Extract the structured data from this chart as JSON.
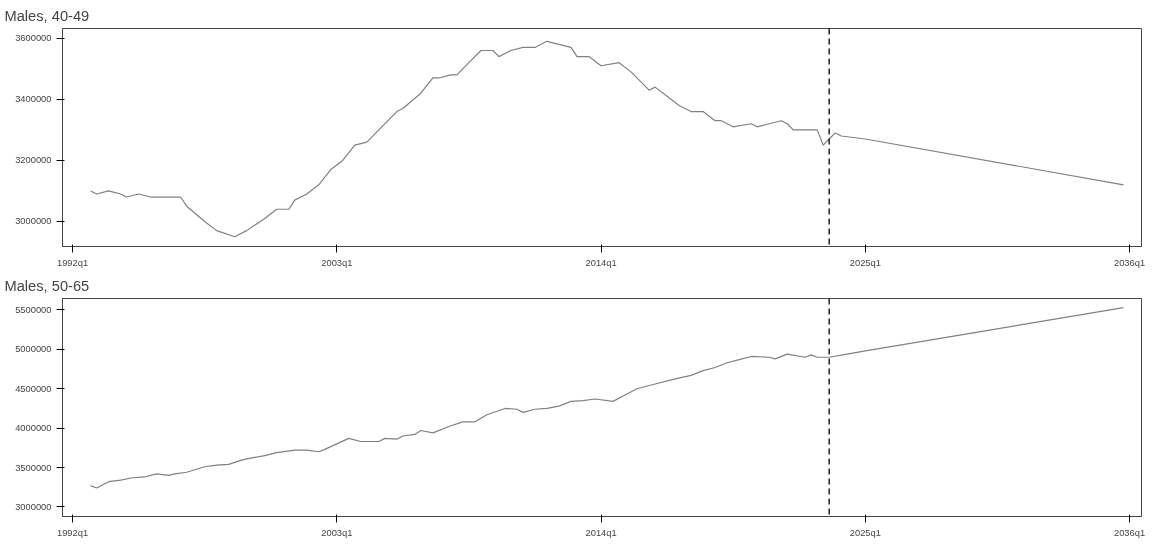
{
  "chart_data": [
    {
      "type": "line",
      "title": "Males, 40-49",
      "color": "#808080",
      "grid": false,
      "line_style": "solid",
      "x": [
        "1992-10",
        "1993-01",
        "1993-07",
        "1994-01",
        "1994-04",
        "1994-10",
        "1995-04",
        "1996-01",
        "1996-07",
        "1996-10",
        "1997-07",
        "1998-01",
        "1998-10",
        "1999-04",
        "2000-01",
        "2000-07",
        "2001-01",
        "2001-04",
        "2001-10",
        "2002-04",
        "2002-10",
        "2003-04",
        "2003-10",
        "2004-04",
        "2004-10",
        "2005-07",
        "2005-10",
        "2006-07",
        "2007-01",
        "2007-04",
        "2007-10",
        "2008-01",
        "2008-07",
        "2009-01",
        "2009-04",
        "2009-07",
        "2009-10",
        "2010-01",
        "2010-04",
        "2010-10",
        "2011-04",
        "2011-10",
        "2012-04",
        "2012-10",
        "2013-01",
        "2013-04",
        "2013-07",
        "2014-01",
        "2014-10",
        "2015-04",
        "2016-01",
        "2016-04",
        "2016-10",
        "2017-04",
        "2017-10",
        "2018-04",
        "2018-10",
        "2019-01",
        "2019-07",
        "2020-04",
        "2020-07",
        "2021-01",
        "2021-07",
        "2021-10",
        "2022-01",
        "2022-07",
        "2023-01",
        "2023-04",
        "2023-07",
        "2023-10",
        "2024-01",
        "2025-01",
        "2035-10"
      ],
      "values": [
        3100000,
        3090000,
        3100000,
        3090000,
        3080000,
        3090000,
        3080000,
        3080000,
        3080000,
        3050000,
        3000000,
        2970000,
        2950000,
        2970000,
        3010000,
        3040000,
        3040000,
        3070000,
        3090000,
        3120000,
        3170000,
        3200000,
        3250000,
        3260000,
        3300000,
        3360000,
        3370000,
        3420000,
        3470000,
        3470000,
        3480000,
        3480000,
        3520000,
        3560000,
        3560000,
        3560000,
        3540000,
        3550000,
        3560000,
        3570000,
        3570000,
        3590000,
        3580000,
        3570000,
        3540000,
        3540000,
        3540000,
        3510000,
        3520000,
        3490000,
        3430000,
        3440000,
        3410000,
        3380000,
        3360000,
        3360000,
        3330000,
        3330000,
        3310000,
        3320000,
        3310000,
        3320000,
        3330000,
        3320000,
        3300000,
        3300000,
        3300000,
        3250000,
        3270000,
        3290000,
        3280000,
        3270000,
        3120000
      ],
      "xlim": [
        "1991-08",
        "2036-07"
      ],
      "ylim": [
        2918000,
        3632000
      ],
      "xticks": [
        {
          "value": "1992-01",
          "label": "1992q1"
        },
        {
          "value": "2003-01",
          "label": "2003q1"
        },
        {
          "value": "2014-01",
          "label": "2014q1"
        },
        {
          "value": "2025-01",
          "label": "2025q1"
        },
        {
          "value": "2036-01",
          "label": "2036q1"
        }
      ],
      "yticks": [
        3000000,
        3200000,
        3400000,
        3600000
      ],
      "ref_lines": [
        {
          "axis": "x",
          "value": "2023-07",
          "color": "#000000",
          "line_style": "dashed"
        }
      ]
    },
    {
      "type": "line",
      "title": "Males, 50-65",
      "color": "#808080",
      "grid": false,
      "line_style": "solid",
      "x": [
        "1992-10",
        "1993-01",
        "1993-07",
        "1994-01",
        "1994-07",
        "1995-01",
        "1995-07",
        "1996-01",
        "1996-04",
        "1996-10",
        "1997-07",
        "1998-01",
        "1998-07",
        "1999-01",
        "1999-04",
        "2000-01",
        "2000-07",
        "2001-04",
        "2001-10",
        "2002-04",
        "2002-07",
        "2003-01",
        "2003-07",
        "2004-01",
        "2004-10",
        "2005-01",
        "2005-07",
        "2005-10",
        "2006-04",
        "2006-07",
        "2007-01",
        "2007-10",
        "2008-04",
        "2008-10",
        "2009-04",
        "2010-01",
        "2010-07",
        "2010-10",
        "2011-04",
        "2011-10",
        "2012-04",
        "2012-10",
        "2013-04",
        "2013-10",
        "2014-07",
        "2015-01",
        "2015-07",
        "2016-04",
        "2017-01",
        "2017-10",
        "2018-04",
        "2018-10",
        "2019-04",
        "2019-10",
        "2020-04",
        "2021-01",
        "2021-04",
        "2021-10",
        "2022-07",
        "2022-10",
        "2023-01",
        "2023-07",
        "2024-04",
        "2025-01",
        "2035-10"
      ],
      "values": [
        3270000,
        3240000,
        3320000,
        3340000,
        3370000,
        3380000,
        3420000,
        3400000,
        3420000,
        3440000,
        3510000,
        3530000,
        3540000,
        3590000,
        3610000,
        3650000,
        3690000,
        3720000,
        3720000,
        3700000,
        3730000,
        3800000,
        3870000,
        3830000,
        3830000,
        3870000,
        3860000,
        3900000,
        3920000,
        3970000,
        3940000,
        4030000,
        4080000,
        4080000,
        4170000,
        4250000,
        4240000,
        4200000,
        4240000,
        4250000,
        4280000,
        4340000,
        4350000,
        4370000,
        4340000,
        4420000,
        4500000,
        4560000,
        4620000,
        4670000,
        4730000,
        4770000,
        4830000,
        4870000,
        4910000,
        4900000,
        4880000,
        4940000,
        4900000,
        4930000,
        4900000,
        4900000,
        4940000,
        4980000,
        5530000
      ],
      "xlim": [
        "1991-08",
        "2036-07"
      ],
      "ylim": [
        2878000,
        5646000
      ],
      "xticks": [
        {
          "value": "1992-01",
          "label": "1992q1"
        },
        {
          "value": "2003-01",
          "label": "2003q1"
        },
        {
          "value": "2014-01",
          "label": "2014q1"
        },
        {
          "value": "2025-01",
          "label": "2025q1"
        },
        {
          "value": "2036-01",
          "label": "2036q1"
        }
      ],
      "yticks": [
        3000000,
        3500000,
        4000000,
        4500000,
        5000000,
        5500000
      ],
      "ref_lines": [
        {
          "axis": "x",
          "value": "2023-07",
          "color": "#000000",
          "line_style": "dashed"
        }
      ]
    }
  ]
}
